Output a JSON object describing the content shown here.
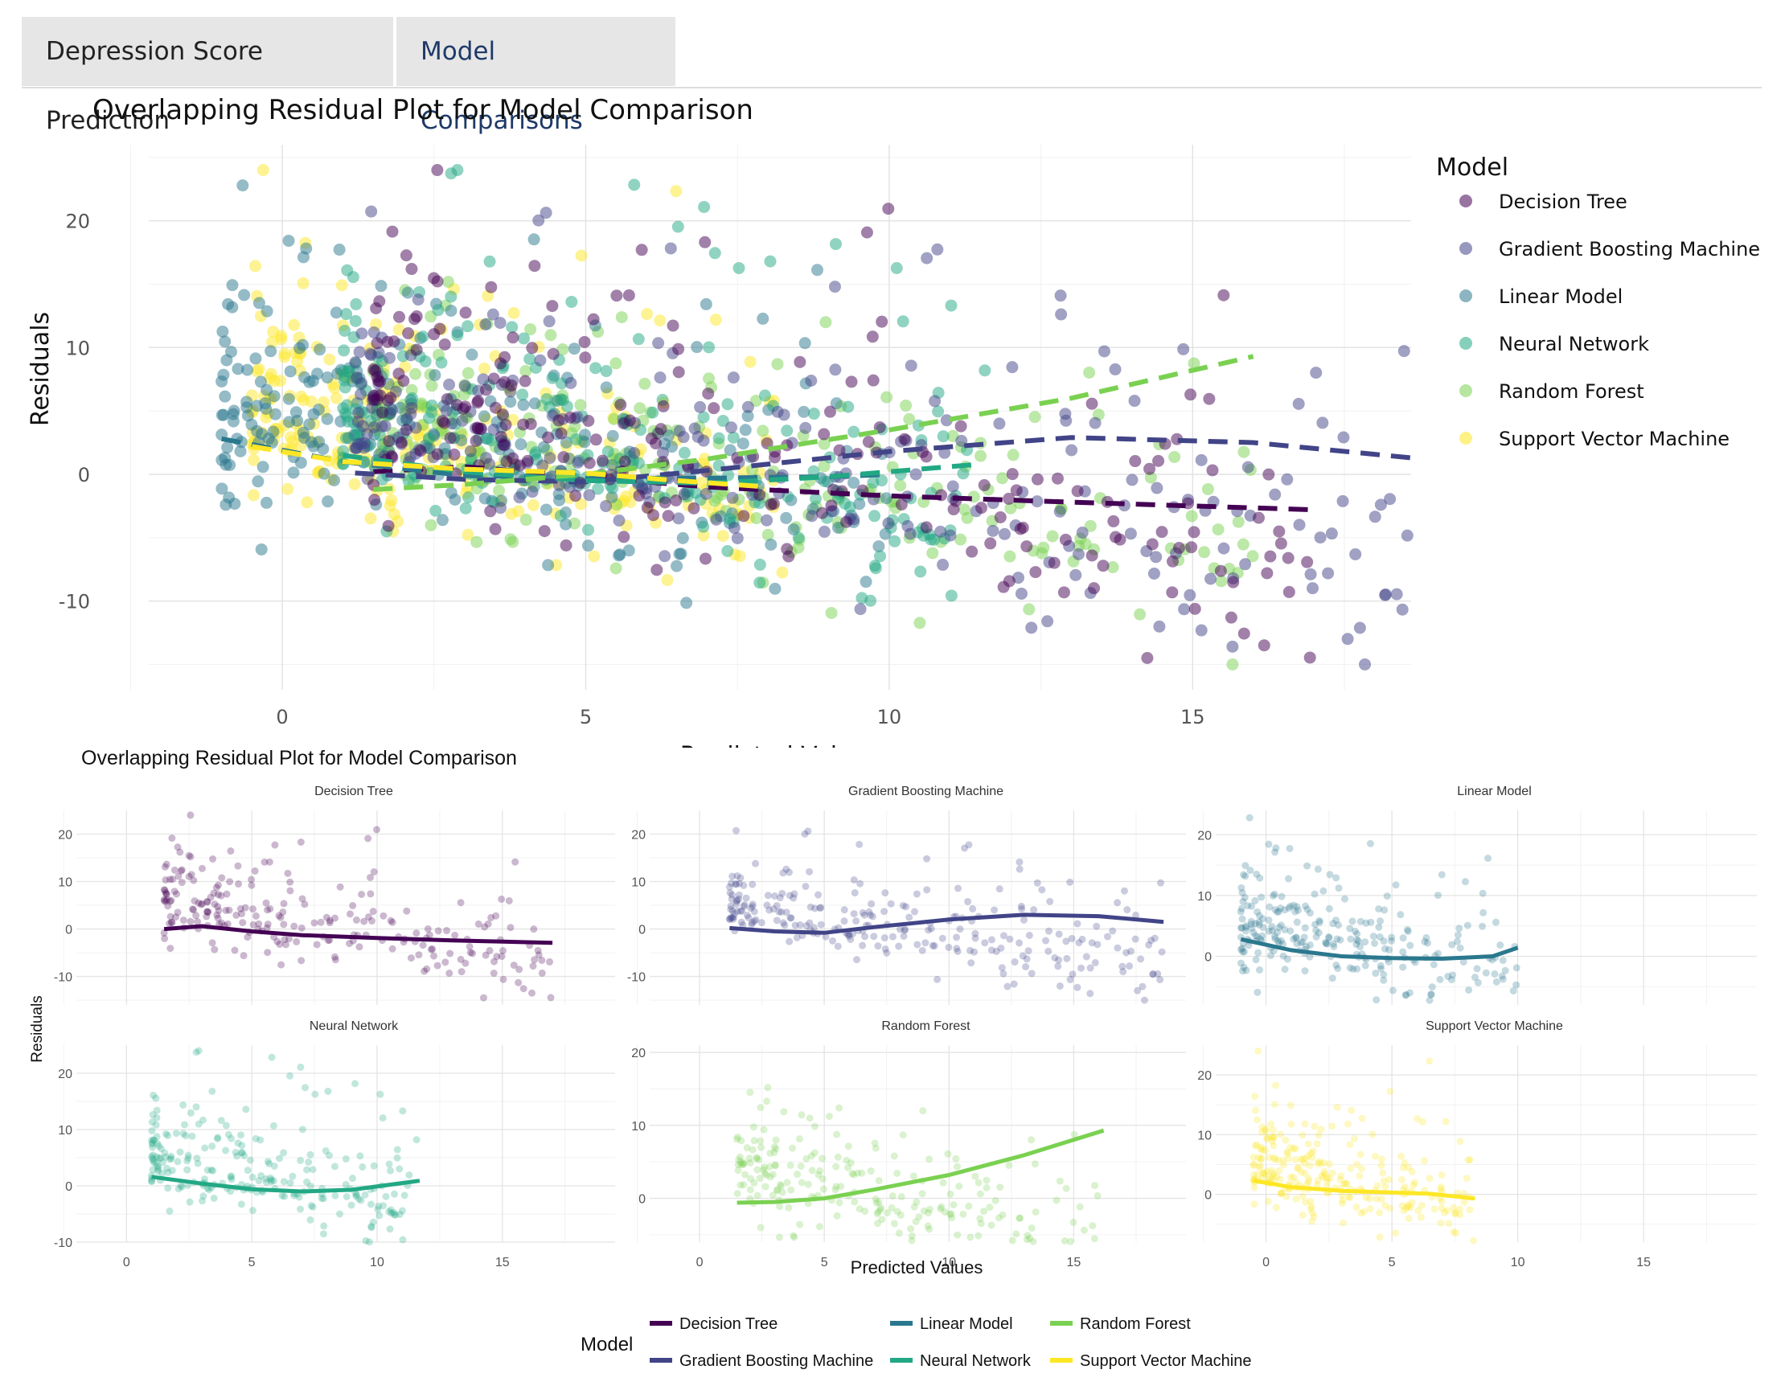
{
  "tabs": [
    {
      "label": "Depression Score Prediction",
      "active": false
    },
    {
      "label": "Model Comparisons",
      "active": true
    }
  ],
  "colors": {
    "Decision Tree": "#440154",
    "Gradient Boosting Machine": "#414487",
    "Linear Model": "#2A788E",
    "Neural Network": "#22A884",
    "Random Forest": "#7AD151",
    "Support Vector Machine": "#FDE725"
  },
  "chart_data": [
    {
      "type": "scatter",
      "title": "Overlapping Residual Plot for Model Comparison",
      "xlabel": "Predicted Values",
      "ylabel": "Residuals",
      "xlim": [
        -2.2,
        18.6
      ],
      "ylim": [
        -17,
        26
      ],
      "xticks": [
        0,
        5,
        10,
        15
      ],
      "yticks": [
        -10,
        0,
        10,
        20
      ],
      "legend_title": "Model",
      "legend_position": "right",
      "series": [
        {
          "name": "Decision Tree",
          "trend": [
            [
              1.5,
              0.2
            ],
            [
              3,
              0.6
            ],
            [
              5,
              -0.2
            ],
            [
              7,
              -1
            ],
            [
              10,
              -1.7
            ],
            [
              13,
              -2.2
            ],
            [
              17,
              -2.8
            ]
          ]
        },
        {
          "name": "Gradient Boosting Machine",
          "trend": [
            [
              1.2,
              0.1
            ],
            [
              3,
              -0.4
            ],
            [
              5,
              -0.6
            ],
            [
              7,
              0.3
            ],
            [
              10,
              1.8
            ],
            [
              13,
              2.9
            ],
            [
              16,
              2.5
            ],
            [
              18.6,
              1.3
            ]
          ]
        },
        {
          "name": "Linear Model",
          "trend": [
            [
              -1,
              2.8
            ],
            [
              1,
              1
            ],
            [
              3,
              -0.1
            ],
            [
              5,
              -0.3
            ],
            [
              7,
              -0.3
            ],
            [
              9,
              -0.2
            ],
            [
              10,
              0
            ]
          ]
        },
        {
          "name": "Neural Network",
          "trend": [
            [
              1,
              1.5
            ],
            [
              3,
              0.2
            ],
            [
              5,
              -0.5
            ],
            [
              7,
              -0.7
            ],
            [
              9,
              -0.2
            ],
            [
              11.5,
              0.8
            ]
          ]
        },
        {
          "name": "Random Forest",
          "trend": [
            [
              1.5,
              -1.2
            ],
            [
              3,
              -0.8
            ],
            [
              5,
              0
            ],
            [
              7,
              1.2
            ],
            [
              10,
              3.5
            ],
            [
              13,
              6
            ],
            [
              16,
              9.3
            ]
          ]
        },
        {
          "name": "Support Vector Machine",
          "trend": [
            [
              -0.5,
              2.2
            ],
            [
              1,
              1
            ],
            [
              3,
              0.4
            ],
            [
              5,
              0.1
            ],
            [
              6.5,
              -0.5
            ],
            [
              8,
              -1
            ]
          ]
        }
      ]
    },
    {
      "type": "scatter",
      "title": "Overlapping Residual Plot for Model Comparison",
      "xlabel": "Predicted Values",
      "ylabel": "Residuals",
      "legend_title": "Model",
      "legend_position": "bottom",
      "facets": [
        {
          "name": "Decision Tree",
          "xlim": [
            -2,
            19.5
          ],
          "ylim": [
            -16,
            25
          ],
          "yticks": [
            -10,
            0,
            10,
            20
          ],
          "trend": [
            [
              1.5,
              0
            ],
            [
              3,
              0.6
            ],
            [
              5,
              -0.5
            ],
            [
              7,
              -1.3
            ],
            [
              10,
              -1.9
            ],
            [
              13,
              -2.4
            ],
            [
              17,
              -2.9
            ]
          ]
        },
        {
          "name": "Gradient Boosting Machine",
          "xlim": [
            -2,
            19.5
          ],
          "ylim": [
            -16,
            25
          ],
          "yticks": [
            -10,
            0,
            10,
            20
          ],
          "trend": [
            [
              1.2,
              0.2
            ],
            [
              3,
              -0.5
            ],
            [
              5,
              -0.8
            ],
            [
              7,
              0.4
            ],
            [
              10,
              2
            ],
            [
              13,
              3
            ],
            [
              16,
              2.7
            ],
            [
              18.6,
              1.5
            ]
          ]
        },
        {
          "name": "Linear Model",
          "xlim": [
            -2,
            19.5
          ],
          "ylim": [
            -8,
            24
          ],
          "yticks": [
            0,
            10,
            20
          ],
          "trend": [
            [
              -1,
              2.8
            ],
            [
              1,
              1
            ],
            [
              3,
              0
            ],
            [
              5,
              -0.3
            ],
            [
              7,
              -0.4
            ],
            [
              9,
              0
            ],
            [
              10,
              1.4
            ]
          ]
        },
        {
          "name": "Neural Network",
          "xlim": [
            -2,
            19.5
          ],
          "ylim": [
            -10,
            25
          ],
          "yticks": [
            -10,
            0,
            10,
            20
          ],
          "trend": [
            [
              1,
              1.6
            ],
            [
              3,
              0.4
            ],
            [
              5,
              -0.6
            ],
            [
              7,
              -1
            ],
            [
              9,
              -0.7
            ],
            [
              11.7,
              0.9
            ]
          ]
        },
        {
          "name": "Random Forest",
          "xlim": [
            -2,
            19.5
          ],
          "ylim": [
            -6,
            21
          ],
          "yticks": [
            0,
            10,
            20
          ],
          "trend": [
            [
              1.5,
              -0.6
            ],
            [
              3,
              -0.5
            ],
            [
              5,
              0
            ],
            [
              7,
              1.2
            ],
            [
              10,
              3.2
            ],
            [
              13,
              5.9
            ],
            [
              16.2,
              9.3
            ]
          ]
        },
        {
          "name": "Support Vector Machine",
          "xlim": [
            -2,
            19.5
          ],
          "ylim": [
            -8,
            25
          ],
          "yticks": [
            0,
            10,
            20
          ],
          "trend": [
            [
              -0.5,
              2.3
            ],
            [
              1,
              1.2
            ],
            [
              3,
              0.6
            ],
            [
              5,
              0.3
            ],
            [
              6.5,
              0.1
            ],
            [
              8.3,
              -0.7
            ]
          ]
        }
      ],
      "xticks": [
        0,
        5,
        10,
        15
      ]
    }
  ]
}
